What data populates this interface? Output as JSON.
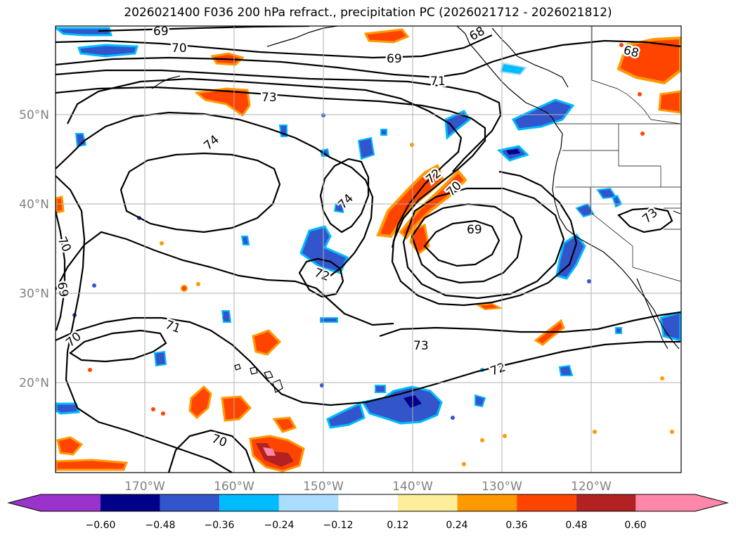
{
  "title": "2026021400 F036 200 hPa refract., precipitation PC (2026021712 - 2026021812)",
  "map": {
    "lat_labels": [
      "50°N",
      "40°N",
      "30°N",
      "20°N"
    ],
    "lon_labels": [
      "170°W",
      "160°W",
      "150°W",
      "140°W",
      "130°W",
      "120°W"
    ]
  },
  "contour_labels": [
    "69",
    "70",
    "68",
    "69",
    "68",
    "71",
    "73",
    "74",
    "72",
    "74",
    "70",
    "69",
    "70",
    "69",
    "73",
    "72",
    "71",
    "70",
    "73",
    "72",
    "70"
  ],
  "colorbar": {
    "ticks": [
      "−0.60",
      "−0.48",
      "−0.36",
      "−0.24",
      "−0.12",
      "0.12",
      "0.24",
      "0.36",
      "0.48",
      "0.60"
    ],
    "colors": [
      "#9933cc",
      "#000088",
      "#3355cc",
      "#00bbff",
      "#aaddff",
      "#ffffff",
      "#ffee99",
      "#ff9900",
      "#ff4400",
      "#b22222",
      "#ff88aa"
    ]
  },
  "chart_data": {
    "type": "map",
    "title": "2026021400 F036 200 hPa refract., precipitation PC (2026021712 - 2026021812)",
    "extent": {
      "lon": [
        -180,
        -110
      ],
      "lat": [
        10,
        60
      ]
    },
    "contour_levels": [
      68,
      69,
      70,
      71,
      72,
      73,
      74
    ],
    "colorbar_levels": [
      -0.6,
      -0.48,
      -0.36,
      -0.24,
      -0.12,
      0.12,
      0.24,
      0.36,
      0.48,
      0.6
    ]
  }
}
